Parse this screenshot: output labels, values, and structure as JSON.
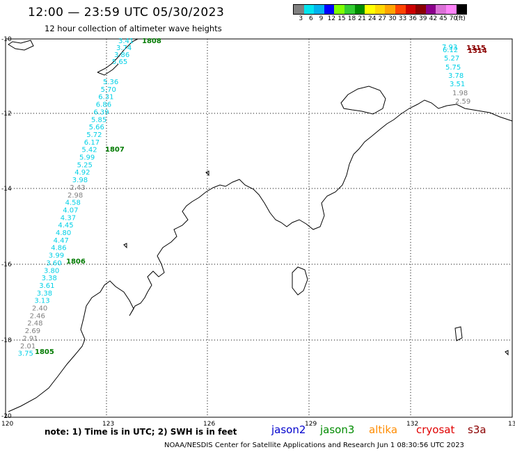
{
  "title": "12:00 — 23:59 UTC 05/30/2023",
  "subtitle": "12 hour collection of altimeter wave heights",
  "legend": {
    "colors": [
      "#808080",
      "#00e5ee",
      "#00b2ee",
      "#0000ff",
      "#7fff00",
      "#32cd32",
      "#008b00",
      "#ffff00",
      "#ffd700",
      "#ffa500",
      "#ff4500",
      "#cd0000",
      "#8b0000",
      "#8b008b",
      "#da70d6",
      "#ff83fa",
      "#000000"
    ],
    "ticks": [
      "3",
      "6",
      "9",
      "12",
      "15",
      "18",
      "21",
      "24",
      "27",
      "30",
      "33",
      "36",
      "39",
      "42",
      "45",
      "70",
      "(ft)"
    ]
  },
  "axes": {
    "lon_ticks": [
      "120",
      "123",
      "126",
      "129",
      "132",
      "135"
    ],
    "lat_ticks": [
      "-10",
      "-12",
      "-14",
      "-16",
      "-18",
      "-20"
    ]
  },
  "colors": {
    "cyan": "#00d0e6",
    "gray": "#808080",
    "green": "#007a00",
    "darkred": "#8b0000",
    "coast": "#000000"
  },
  "track1": {
    "values": [
      "3.41",
      "3.74",
      "3.86",
      "5.65",
      "5.36",
      "5.70",
      "6.31",
      "6.86",
      "6.39",
      "5.85",
      "5.66",
      "5.72",
      "6.17",
      "5.42",
      "5.99",
      "5.25",
      "4.92",
      "3.98",
      "2.43",
      "2.98",
      "4.58",
      "4.07",
      "4.37",
      "4.45",
      "4.80",
      "4.47",
      "4.86",
      "3.99",
      "3.60",
      "3.80",
      "3.38",
      "3.61",
      "3.38",
      "3.13",
      "2.40",
      "2.46",
      "2.48",
      "2.69",
      "2.91",
      "2.01",
      "3.75"
    ],
    "times": [
      "1808",
      "1807",
      "1806",
      "1805"
    ]
  },
  "track2": {
    "values": [
      "7.93",
      "6.12",
      "5.27",
      "5.75",
      "3.78",
      "3.51",
      "1.98",
      "2.59"
    ],
    "times": [
      "1315",
      "1314"
    ]
  },
  "note": "note:  1) Time is in UTC;  2) SWH is in feet",
  "satellites": [
    {
      "name": "jason2",
      "color": "#0000cd"
    },
    {
      "name": "jason3",
      "color": "#008b00"
    },
    {
      "name": "altika",
      "color": "#ff8c00"
    },
    {
      "name": "cryosat",
      "color": "#e00000"
    },
    {
      "name": "s3a",
      "color": "#8b0000"
    }
  ],
  "credit": "NOAA/NESDIS Center for Satellite Applications and Research    Jun  1 08:30:56 UTC 2023"
}
